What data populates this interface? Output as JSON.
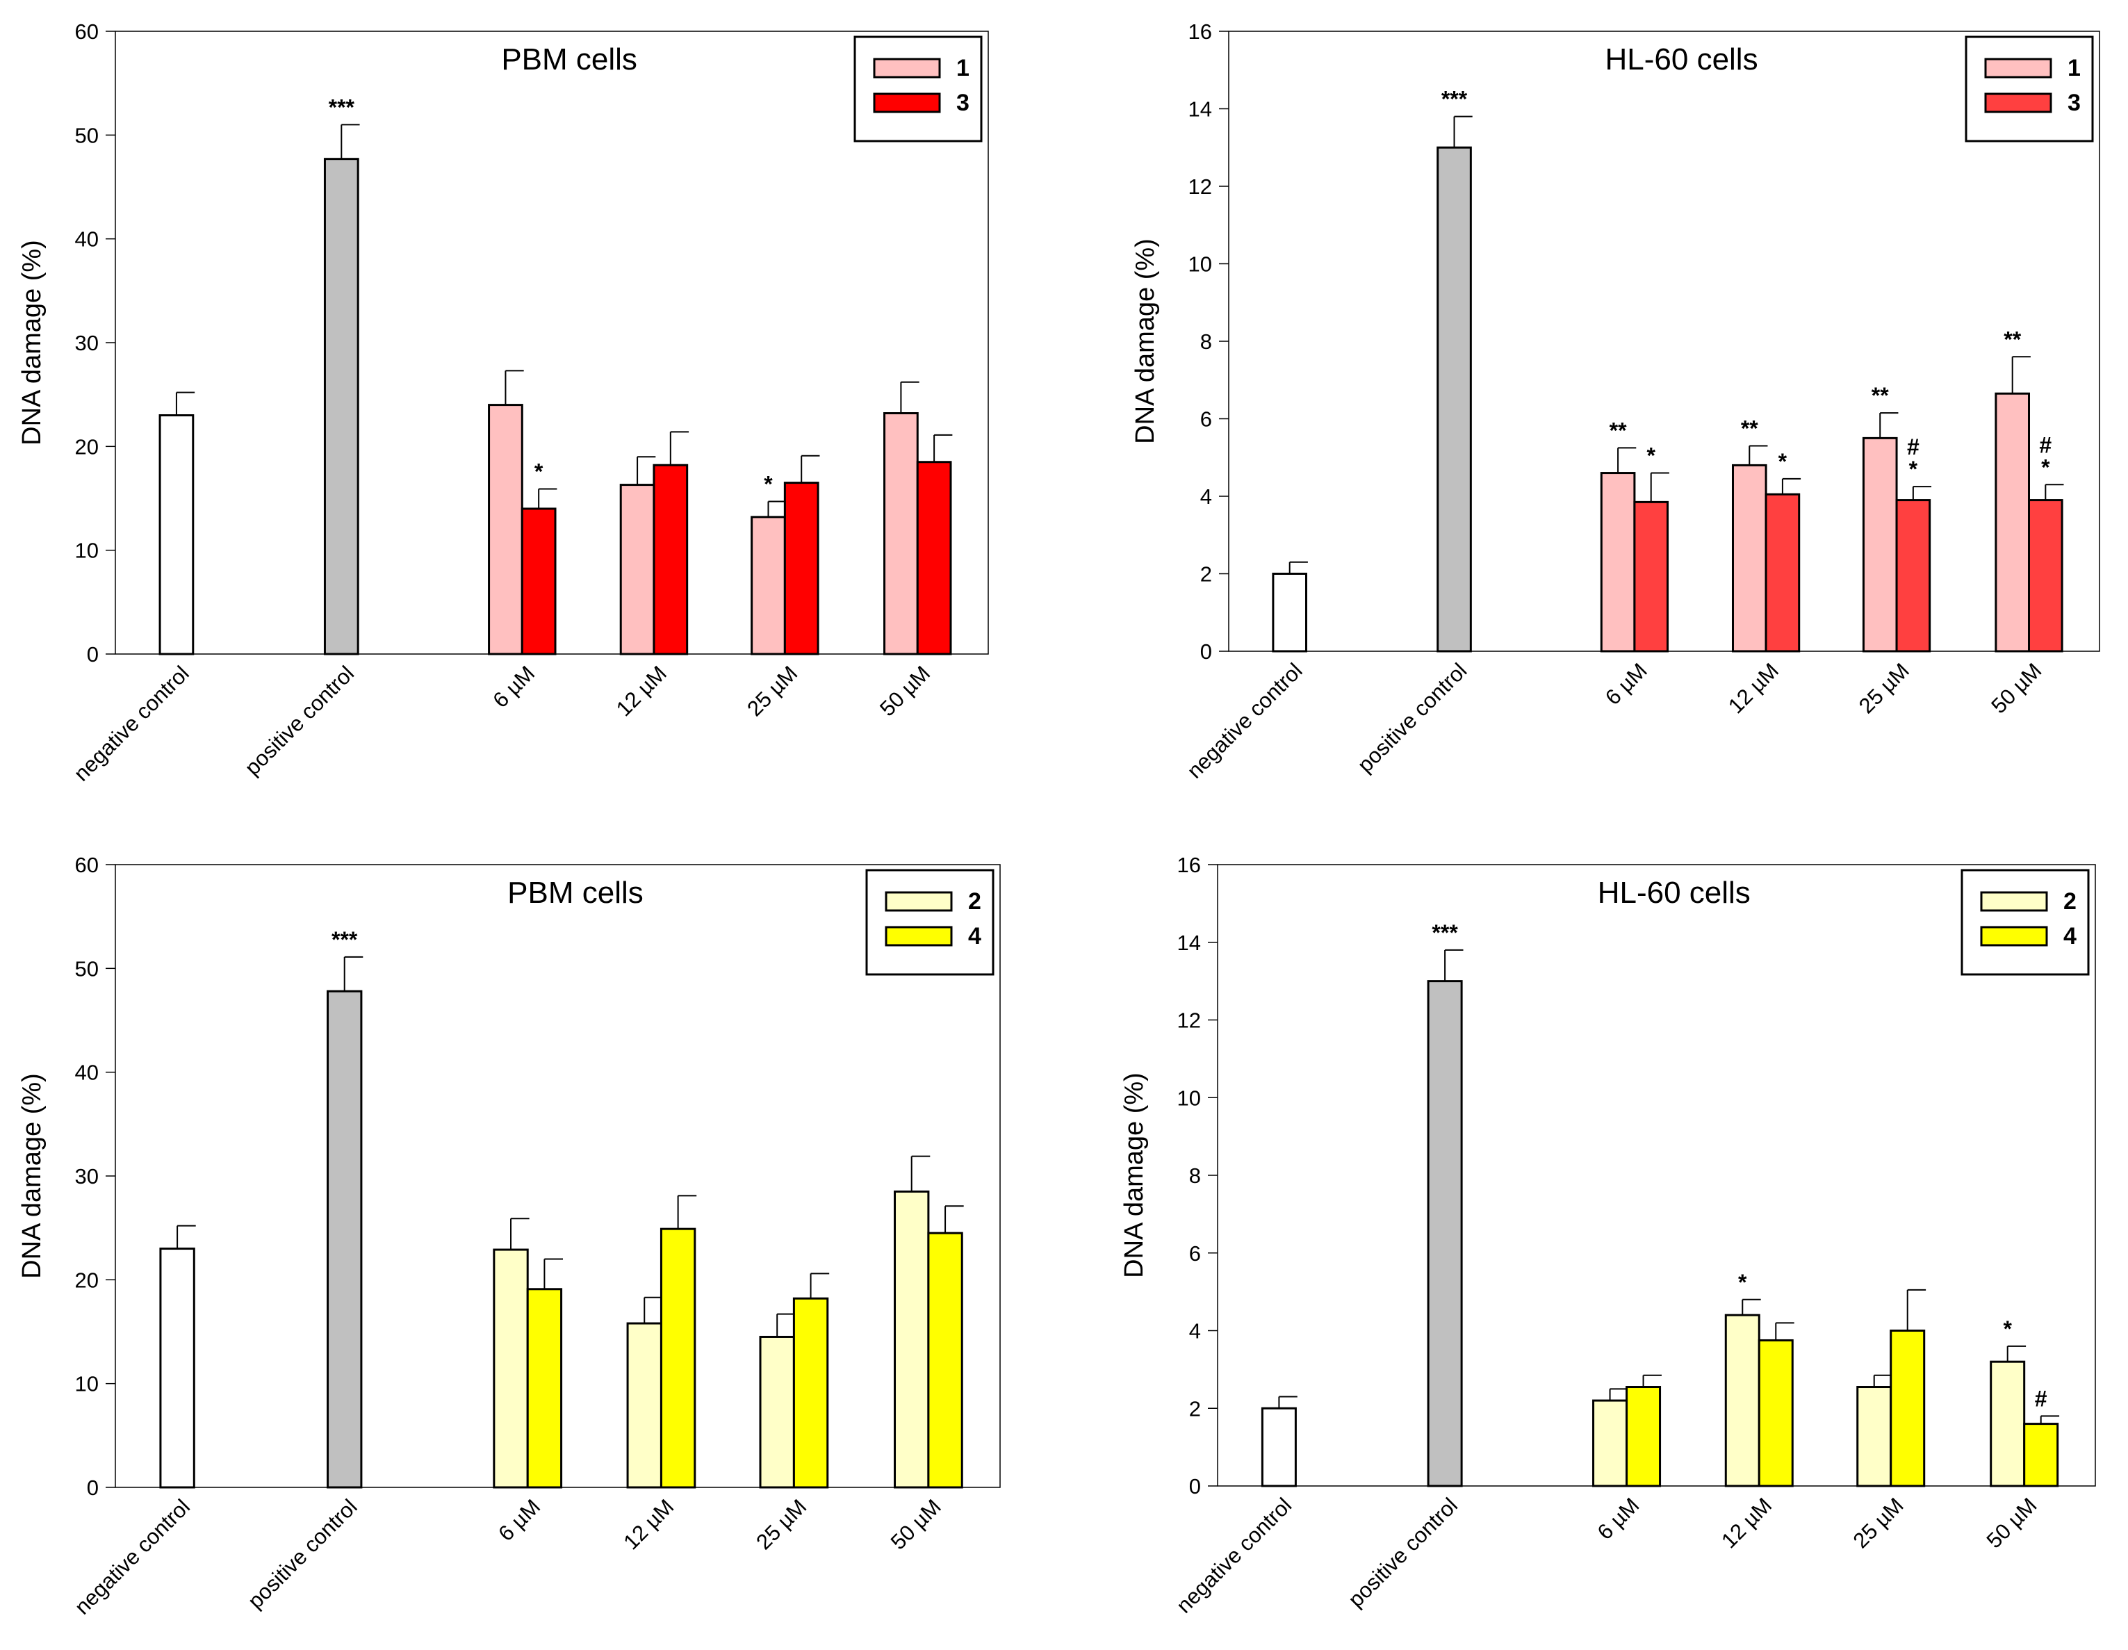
{
  "chart_data": [
    {
      "type": "bar",
      "title": "PBM cells",
      "y_label": "DNA damage (%)",
      "categories": [
        "negative control",
        "positive control",
        "6 µM",
        "12 µM",
        "25 µM",
        "50 µM"
      ],
      "ylim": [
        0,
        60
      ],
      "yticks": [
        0,
        10,
        20,
        30,
        40,
        50,
        60
      ],
      "legend": "upper right",
      "controls": {
        "values": [
          23,
          47.7,
          null,
          null,
          null,
          null
        ],
        "errors": [
          2.2,
          3.3,
          null,
          null,
          null,
          null
        ],
        "colors": [
          "#ffffff",
          "#c0c0c0",
          null,
          null,
          null,
          null
        ],
        "annotations": [
          null,
          [
            "***"
          ],
          null,
          null,
          null,
          null
        ]
      },
      "series": [
        {
          "name": "1",
          "color": "#ffc0c0",
          "values": [
            null,
            null,
            24,
            16.3,
            13.2,
            23.2
          ],
          "errors": [
            null,
            null,
            3.3,
            2.7,
            1.5,
            3
          ],
          "annotations": [
            null,
            null,
            null,
            null,
            [
              "*"
            ],
            null
          ]
        },
        {
          "name": "3",
          "color": "#ff0000",
          "values": [
            null,
            null,
            14,
            18.2,
            16.5,
            18.5
          ],
          "errors": [
            null,
            null,
            1.9,
            3.2,
            2.6,
            2.6
          ],
          "annotations": [
            null,
            null,
            [
              "*"
            ],
            null,
            null,
            null
          ]
        }
      ]
    },
    {
      "type": "bar",
      "title": "HL-60 cells",
      "y_label": "DNA damage (%)",
      "categories": [
        "negative control",
        "positive control",
        "6 µM",
        "12 µM",
        "25 µM",
        "50 µM"
      ],
      "ylim": [
        0,
        16
      ],
      "yticks": [
        0,
        2,
        4,
        6,
        8,
        10,
        12,
        14,
        16
      ],
      "legend": "upper right",
      "controls": {
        "values": [
          2,
          13,
          null,
          null,
          null,
          null
        ],
        "errors": [
          0.3,
          0.8,
          null,
          null,
          null,
          null
        ],
        "colors": [
          "#ffffff",
          "#c0c0c0",
          null,
          null,
          null,
          null
        ],
        "annotations": [
          null,
          [
            "***"
          ],
          null,
          null,
          null,
          null
        ]
      },
      "series": [
        {
          "name": "1",
          "color": "#ffc0c0",
          "values": [
            null,
            null,
            4.6,
            4.8,
            5.5,
            6.65
          ],
          "errors": [
            null,
            null,
            0.65,
            0.5,
            0.65,
            0.95
          ],
          "annotations": [
            null,
            null,
            [
              "**"
            ],
            [
              "**"
            ],
            [
              "**"
            ],
            [
              "**"
            ]
          ]
        },
        {
          "name": "3",
          "color": "#ff4040",
          "values": [
            null,
            null,
            3.85,
            4.05,
            3.9,
            3.9
          ],
          "errors": [
            null,
            null,
            0.75,
            0.4,
            0.35,
            0.4
          ],
          "annotations": [
            null,
            null,
            [
              "*"
            ],
            [
              "*"
            ],
            [
              "#",
              "*"
            ],
            [
              "#",
              "*"
            ]
          ]
        }
      ]
    },
    {
      "type": "bar",
      "title": "PBM cells",
      "y_label": "DNA damage (%)",
      "categories": [
        "negative control",
        "positive control",
        "6 µM",
        "12 µM",
        "25 µM",
        "50 µM"
      ],
      "ylim": [
        0,
        60
      ],
      "yticks": [
        0,
        10,
        20,
        30,
        40,
        50,
        60
      ],
      "legend": "upper right",
      "controls": {
        "values": [
          23,
          47.8,
          null,
          null,
          null,
          null
        ],
        "errors": [
          2.2,
          3.3,
          null,
          null,
          null,
          null
        ],
        "colors": [
          "#ffffff",
          "#c0c0c0",
          null,
          null,
          null,
          null
        ],
        "annotations": [
          null,
          [
            "***"
          ],
          null,
          null,
          null,
          null
        ]
      },
      "series": [
        {
          "name": "2",
          "color": "#ffffc8",
          "values": [
            null,
            null,
            22.9,
            15.8,
            14.5,
            28.5
          ],
          "errors": [
            null,
            null,
            3,
            2.5,
            2.2,
            3.4
          ],
          "annotations": [
            null,
            null,
            null,
            null,
            null,
            null
          ]
        },
        {
          "name": "4",
          "color": "#ffff00",
          "values": [
            null,
            null,
            19.1,
            24.9,
            18.2,
            24.5
          ],
          "errors": [
            null,
            null,
            2.9,
            3.2,
            2.4,
            2.6
          ],
          "annotations": [
            null,
            null,
            null,
            null,
            null,
            null
          ]
        }
      ]
    },
    {
      "type": "bar",
      "title": "HL-60 cells",
      "y_label": "DNA damage (%)",
      "categories": [
        "negative control",
        "positive control",
        "6 µM",
        "12 µM",
        "25 µM",
        "50 µM"
      ],
      "ylim": [
        0,
        16
      ],
      "yticks": [
        0,
        2,
        4,
        6,
        8,
        10,
        12,
        14,
        16
      ],
      "legend": "upper right",
      "controls": {
        "values": [
          2,
          13,
          null,
          null,
          null,
          null
        ],
        "errors": [
          0.3,
          0.8,
          null,
          null,
          null,
          null
        ],
        "colors": [
          "#ffffff",
          "#c0c0c0",
          null,
          null,
          null,
          null
        ],
        "annotations": [
          null,
          [
            "***"
          ],
          null,
          null,
          null,
          null
        ]
      },
      "series": [
        {
          "name": "2",
          "color": "#ffffc8",
          "values": [
            null,
            null,
            2.2,
            4.4,
            2.55,
            3.2
          ],
          "errors": [
            null,
            null,
            0.3,
            0.4,
            0.3,
            0.4
          ],
          "annotations": [
            null,
            null,
            null,
            [
              "*"
            ],
            null,
            [
              "*"
            ]
          ]
        },
        {
          "name": "4",
          "color": "#ffff00",
          "values": [
            null,
            null,
            2.55,
            3.75,
            4,
            1.6
          ],
          "errors": [
            null,
            null,
            0.3,
            0.45,
            1.05,
            0.2
          ],
          "annotations": [
            null,
            null,
            null,
            null,
            null,
            [
              "#"
            ]
          ]
        }
      ]
    }
  ]
}
